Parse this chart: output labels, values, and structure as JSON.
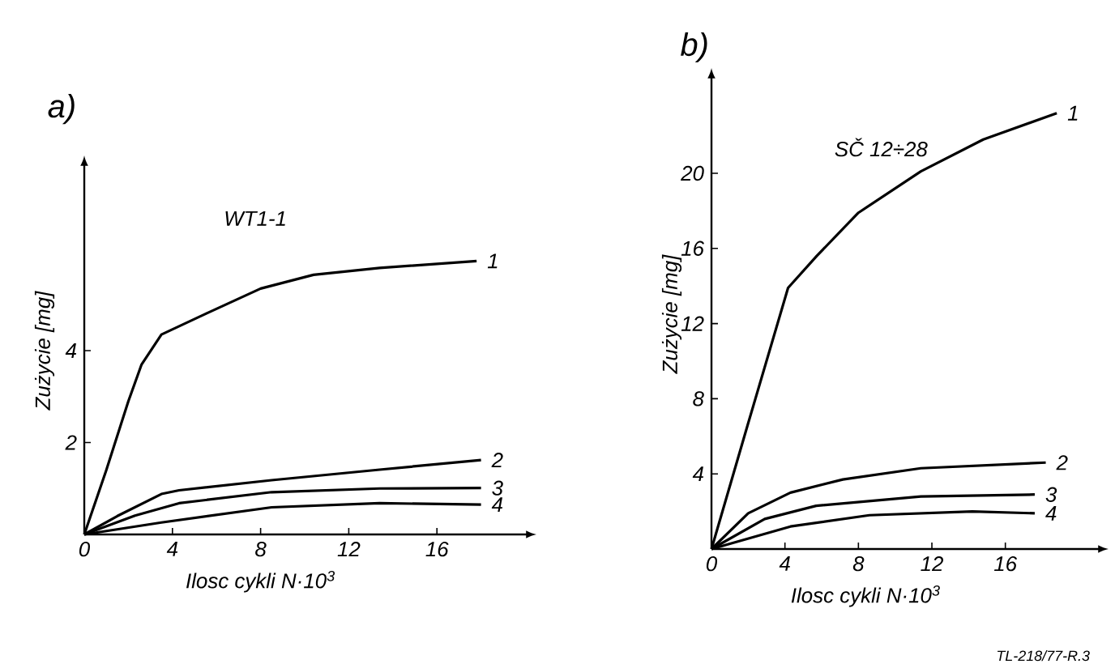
{
  "chart_data": [
    {
      "type": "line",
      "title": "a)",
      "subtitle": "WT1-1",
      "xlabel": "Ilosc cykli N·10$^{3}$",
      "ylabel": "Zużycie [mg]",
      "xlim": [
        0,
        20
      ],
      "ylim": [
        0,
        8
      ],
      "xticks": [
        0,
        4,
        8,
        12,
        16
      ],
      "yticks": [
        2,
        4
      ],
      "series": [
        {
          "name": "1",
          "color": "#000000",
          "x": [
            0,
            1,
            2,
            2.6,
            3.5,
            5.5,
            8,
            10.4,
            13.4,
            17.8
          ],
          "values": [
            0,
            1.4,
            2.9,
            3.7,
            4.35,
            4.8,
            5.35,
            5.65,
            5.8,
            5.95
          ]
        },
        {
          "name": "2",
          "color": "#000000",
          "x": [
            0,
            1.5,
            3.5,
            4.3,
            8.5,
            13.4,
            18
          ],
          "values": [
            0,
            0.4,
            0.88,
            0.96,
            1.18,
            1.41,
            1.62
          ]
        },
        {
          "name": "3",
          "color": "#000000",
          "x": [
            0,
            2.3,
            4.3,
            8.5,
            13.4,
            18
          ],
          "values": [
            0,
            0.41,
            0.68,
            0.92,
            1.0,
            1.01
          ]
        },
        {
          "name": "4",
          "color": "#000000",
          "x": [
            0,
            3.5,
            8.5,
            13.4,
            18
          ],
          "values": [
            0,
            0.26,
            0.59,
            0.68,
            0.65
          ]
        }
      ]
    },
    {
      "type": "line",
      "title": "b)",
      "subtitle": "SČ 12÷28",
      "xlabel": "Ilosc cykli N·10$^{3}$",
      "ylabel": "Zużycie [mg]",
      "xlim": [
        0,
        21
      ],
      "ylim": [
        0,
        25
      ],
      "xticks": [
        0,
        4,
        8,
        12,
        16
      ],
      "yticks": [
        4,
        8,
        12,
        16,
        20
      ],
      "annotations": [
        "TL-218/77-R.3"
      ],
      "series": [
        {
          "name": "1",
          "color": "#000000",
          "x": [
            0,
            2,
            4.17,
            5.73,
            8,
            11.4,
            14.8,
            18.8
          ],
          "values": [
            0,
            6.7,
            13.9,
            15.6,
            17.9,
            20.1,
            21.8,
            23.2
          ]
        },
        {
          "name": "2",
          "color": "#000000",
          "x": [
            0,
            2,
            4.3,
            7.15,
            11.4,
            18.2
          ],
          "values": [
            0,
            1.9,
            3.0,
            3.7,
            4.3,
            4.6
          ]
        },
        {
          "name": "3",
          "color": "#000000",
          "x": [
            0,
            2.9,
            5.7,
            11.4,
            17.6
          ],
          "values": [
            0,
            1.6,
            2.3,
            2.8,
            2.9
          ]
        },
        {
          "name": "4",
          "color": "#000000",
          "x": [
            0,
            4.3,
            8.6,
            14.2,
            17.6
          ],
          "values": [
            0,
            1.2,
            1.8,
            2.0,
            1.9
          ]
        }
      ]
    }
  ]
}
